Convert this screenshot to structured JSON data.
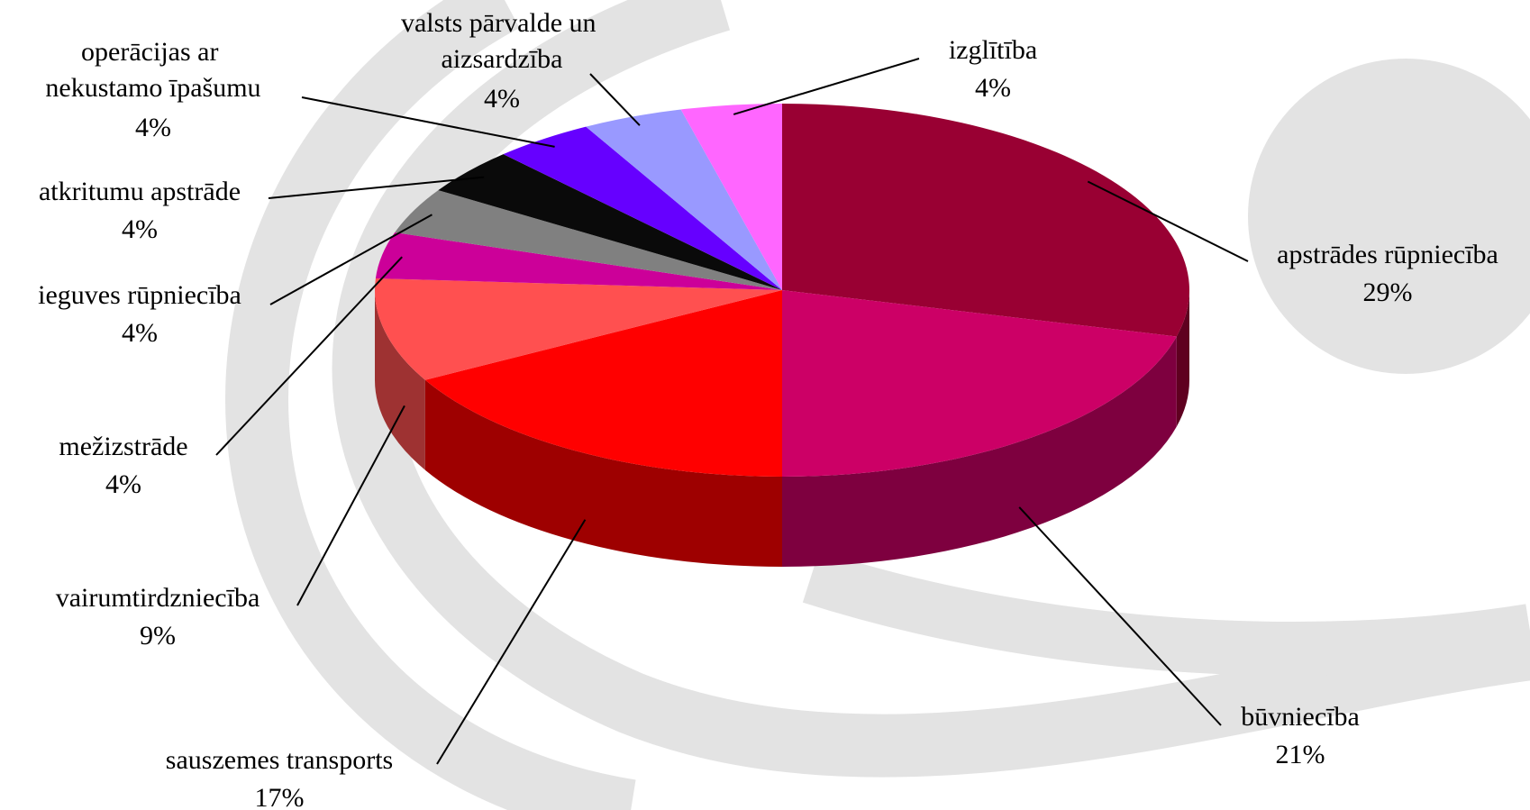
{
  "chart_data": {
    "type": "pie3d",
    "categories": [
      "apstrādes rūpniecība",
      "būvniecība",
      "sauszemes transports",
      "vairumtirdzniecība",
      "mežizstrāde",
      "ieguves rūpniecība",
      "atkritumu apstrāde",
      "operācijas ar nekustamo īpašumu",
      "valsts pārvalde un aizsardzība",
      "izglītība"
    ],
    "values": [
      29,
      21,
      17,
      9,
      4,
      4,
      4,
      4,
      4,
      4
    ],
    "value_labels": [
      "29%",
      "21%",
      "17%",
      "9%",
      "4%",
      "4%",
      "4%",
      "4%",
      "4%",
      "4%"
    ],
    "colors": [
      "#990033",
      "#cc0066",
      "#ff0000",
      "#ff5050",
      "#cc0099",
      "#808080",
      "#0a0a0a",
      "#6600ff",
      "#9999ff",
      "#ff66ff"
    ]
  }
}
